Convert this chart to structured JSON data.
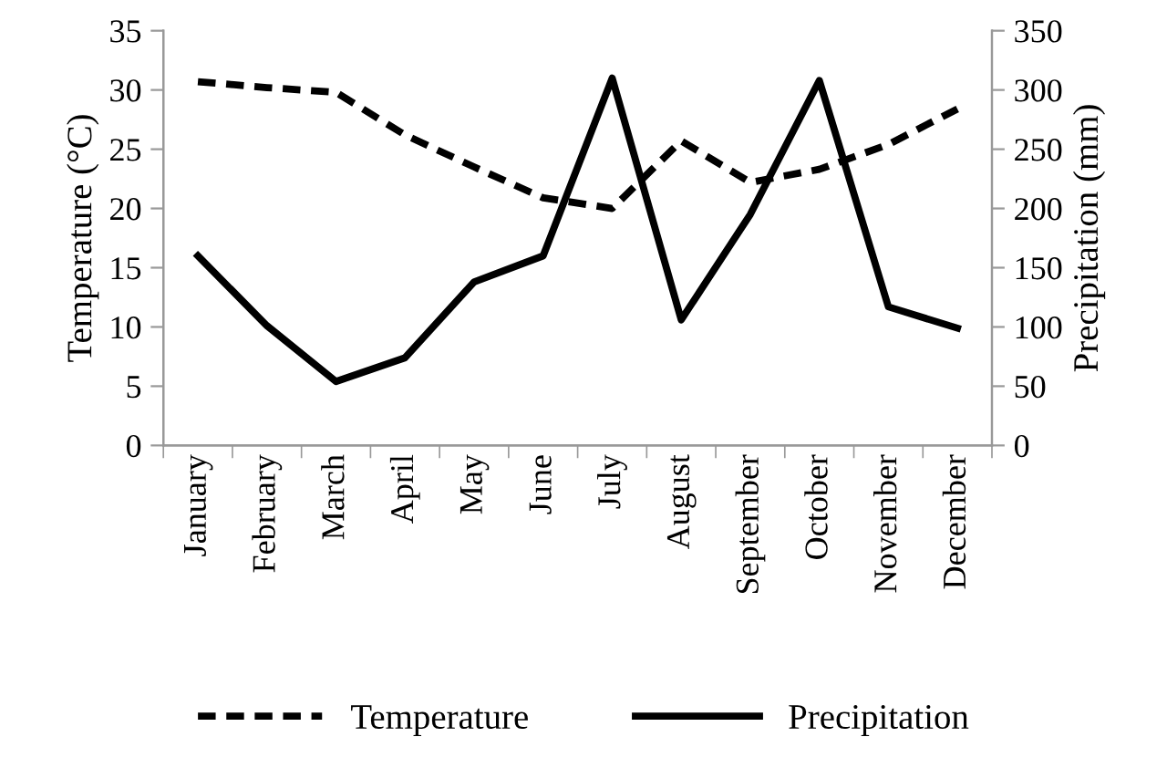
{
  "chart_data": {
    "type": "line",
    "categories": [
      "January",
      "February",
      "March",
      "April",
      "May",
      "June",
      "July",
      "August",
      "September",
      "October",
      "November",
      "December"
    ],
    "ylabel": "Temperature (°C)",
    "y2label": "Precipitation (mm)",
    "series": [
      {
        "name": "Temperature",
        "color": "#000000",
        "line_style": "dashed",
        "values": [
          30.7,
          30.2,
          29.8,
          26.2,
          23.5,
          20.9,
          20,
          25.7,
          22.2,
          23.3,
          25.4,
          28.4
        ]
      },
      {
        "name": "Precipitation",
        "color": "#000000",
        "line_style": "solid",
        "axis": "y2",
        "values": [
          160,
          101,
          54,
          74,
          138,
          160,
          310,
          106,
          195,
          308,
          117,
          99
        ]
      }
    ],
    "ylim": [
      0,
      35
    ],
    "yticks": [
      0,
      5,
      10,
      15,
      20,
      25,
      30,
      35
    ],
    "y2lim": [
      0,
      350
    ],
    "y2ticks": [
      0,
      50,
      100,
      150,
      200,
      250,
      300,
      350
    ],
    "grid": false,
    "legend": "bottom",
    "marker": "none"
  }
}
